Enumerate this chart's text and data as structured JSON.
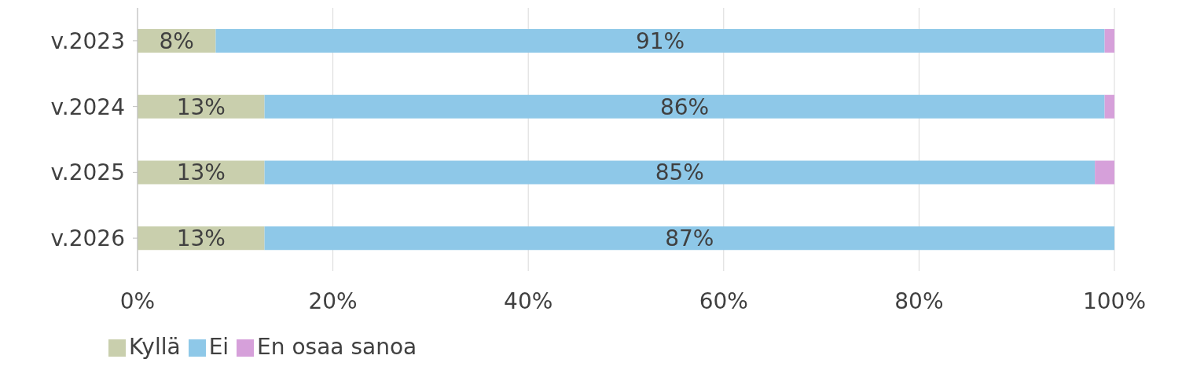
{
  "chart_data": {
    "type": "bar",
    "orientation": "horizontal",
    "stacked": true,
    "categories": [
      "v.2023",
      "v.2024",
      "v.2025",
      "v.2026"
    ],
    "series": [
      {
        "name": "Kyllä",
        "color": "#c9cfad",
        "values": [
          8,
          13,
          13,
          13
        ],
        "value_labels": [
          "8%",
          "13%",
          "13%",
          "13%"
        ]
      },
      {
        "name": "Ei",
        "color": "#8ec8e8",
        "values": [
          91,
          86,
          85,
          87
        ],
        "value_labels": [
          "91%",
          "86%",
          "85%",
          "87%"
        ]
      },
      {
        "name": "En osaa sanoa",
        "color": "#d6a0da",
        "values": [
          1,
          1,
          2,
          0
        ],
        "value_labels": [
          null,
          null,
          null,
          null
        ]
      }
    ],
    "xlim": [
      0,
      100
    ],
    "xticks": [
      {
        "value": 0,
        "label": "0%"
      },
      {
        "value": 20,
        "label": "20%"
      },
      {
        "value": 40,
        "label": "40%"
      },
      {
        "value": 60,
        "label": "60%"
      },
      {
        "value": 80,
        "label": "80%"
      },
      {
        "value": 100,
        "label": "100%"
      }
    ],
    "grid": "x",
    "legend": "bottom left"
  }
}
